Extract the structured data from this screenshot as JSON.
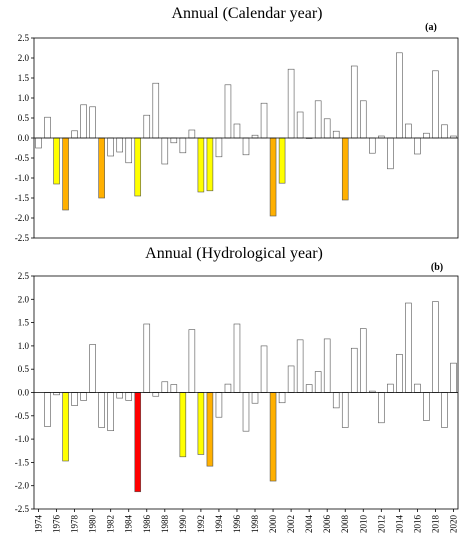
{
  "chart_data": [
    {
      "type": "bar",
      "title": "Annual (Calendar year)",
      "panel_label": "(a)",
      "ylim": [
        -2.5,
        2.5
      ],
      "yticks": [
        "2.5",
        "2.0",
        "1.5",
        "1.0",
        "0.5",
        "0.0",
        "-0.5",
        "-1.0",
        "-1.5",
        "-2.0",
        "-2.5"
      ],
      "x": [
        1974,
        1975,
        1976,
        1977,
        1978,
        1979,
        1980,
        1981,
        1982,
        1983,
        1984,
        1985,
        1986,
        1987,
        1988,
        1989,
        1990,
        1991,
        1992,
        1993,
        1994,
        1995,
        1996,
        1997,
        1998,
        1999,
        2000,
        2001,
        2002,
        2003,
        2004,
        2005,
        2006,
        2007,
        2008,
        2009,
        2010,
        2011,
        2012,
        2013,
        2014,
        2015,
        2016,
        2017,
        2018,
        2019,
        2020
      ],
      "values": [
        -0.25,
        0.52,
        -1.15,
        -1.8,
        0.18,
        0.83,
        0.78,
        -1.5,
        -0.45,
        -0.35,
        -0.62,
        -1.45,
        0.57,
        1.37,
        -0.65,
        -0.12,
        -0.37,
        0.2,
        -1.35,
        -1.32,
        -0.47,
        1.33,
        0.35,
        -0.42,
        0.07,
        0.87,
        -1.95,
        -1.13,
        1.72,
        0.65,
        0.0,
        0.93,
        0.48,
        0.17,
        -1.55,
        1.8,
        0.93,
        -0.38,
        0.05,
        -0.77,
        2.13,
        0.35,
        -0.4,
        0.12,
        1.68,
        0.33,
        0.05
      ],
      "colors": [
        "#ffffff",
        "#ffffff",
        "#ffff00",
        "#ffb000",
        "#ffffff",
        "#ffffff",
        "#ffffff",
        "#ffb000",
        "#ffffff",
        "#ffffff",
        "#ffffff",
        "#ffff00",
        "#ffffff",
        "#ffffff",
        "#ffffff",
        "#ffffff",
        "#ffffff",
        "#ffffff",
        "#ffff00",
        "#ffff00",
        "#ffffff",
        "#ffffff",
        "#ffffff",
        "#ffffff",
        "#ffffff",
        "#ffffff",
        "#ffb000",
        "#ffff00",
        "#ffffff",
        "#ffffff",
        "#ffffff",
        "#ffffff",
        "#ffffff",
        "#ffffff",
        "#ffb000",
        "#ffffff",
        "#ffffff",
        "#ffffff",
        "#ffffff",
        "#ffffff",
        "#ffffff",
        "#ffffff",
        "#ffffff",
        "#ffffff",
        "#ffffff",
        "#ffffff",
        "#ffffff"
      ],
      "grid": false
    },
    {
      "type": "bar",
      "title": "Annual (Hydrological year)",
      "panel_label": "(b)",
      "ylim": [
        -2.5,
        2.5
      ],
      "yticks": [
        "2.5",
        "2.0",
        "1.5",
        "1.0",
        "0.5",
        "0.0",
        "-0.5",
        "-1.0",
        "-1.5",
        "-2.0",
        "-2.5"
      ],
      "x": [
        1974,
        1975,
        1976,
        1977,
        1978,
        1979,
        1980,
        1981,
        1982,
        1983,
        1984,
        1985,
        1986,
        1987,
        1988,
        1989,
        1990,
        1991,
        1992,
        1993,
        1994,
        1995,
        1996,
        1997,
        1998,
        1999,
        2000,
        2001,
        2002,
        2003,
        2004,
        2005,
        2006,
        2007,
        2008,
        2009,
        2010,
        2011,
        2012,
        2013,
        2014,
        2015,
        2016,
        2017,
        2018,
        2019,
        2020
      ],
      "values": [
        null,
        -0.73,
        -0.05,
        -1.47,
        -0.28,
        -0.17,
        1.03,
        -0.75,
        -0.82,
        -0.12,
        -0.17,
        -2.13,
        1.47,
        -0.08,
        0.23,
        0.17,
        -1.38,
        1.35,
        -1.33,
        -1.58,
        -0.53,
        0.18,
        1.47,
        -0.83,
        -0.23,
        1.0,
        -1.9,
        -0.22,
        0.57,
        1.13,
        0.17,
        0.45,
        1.15,
        -0.33,
        -0.75,
        0.95,
        1.37,
        0.03,
        -0.65,
        0.18,
        0.82,
        1.92,
        0.18,
        -0.6,
        1.95,
        -0.75,
        0.63
      ],
      "colors": [
        "#ffffff",
        "#ffffff",
        "#ffffff",
        "#ffff00",
        "#ffffff",
        "#ffffff",
        "#ffffff",
        "#ffffff",
        "#ffffff",
        "#ffffff",
        "#ffffff",
        "#ff0000",
        "#ffffff",
        "#ffffff",
        "#ffffff",
        "#ffffff",
        "#ffff00",
        "#ffffff",
        "#ffff00",
        "#ffb000",
        "#ffffff",
        "#ffffff",
        "#ffffff",
        "#ffffff",
        "#ffffff",
        "#ffffff",
        "#ffb000",
        "#ffffff",
        "#ffffff",
        "#ffffff",
        "#ffffff",
        "#ffffff",
        "#ffffff",
        "#ffffff",
        "#ffffff",
        "#ffffff",
        "#ffffff",
        "#ffffff",
        "#ffffff",
        "#ffffff",
        "#ffffff",
        "#ffffff",
        "#ffffff",
        "#ffffff",
        "#ffffff",
        "#ffffff",
        "#ffffff"
      ],
      "xtick_labels": [
        "1974",
        "1976",
        "1978",
        "1980",
        "1982",
        "1984",
        "1986",
        "1988",
        "1990",
        "1992",
        "1994",
        "1996",
        "1998",
        "2000",
        "2002",
        "2004",
        "2006",
        "2008",
        "2010",
        "2012",
        "2014",
        "2016",
        "2018",
        "2020"
      ],
      "grid": false
    }
  ]
}
